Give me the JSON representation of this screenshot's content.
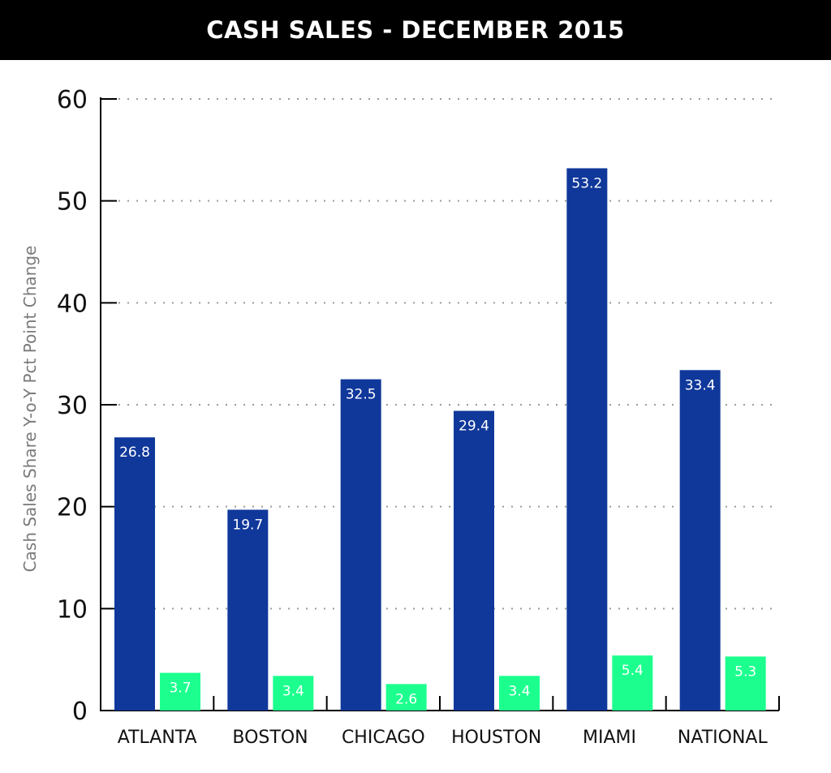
{
  "chart_data": {
    "type": "bar",
    "title": "CASH SALES - DECEMBER 2015",
    "ylabel": "Cash Sales Share Y-o-Y Pct Point Change",
    "xlabel": "",
    "categories": [
      "ATLANTA",
      "BOSTON",
      "CHICAGO",
      "HOUSTON",
      "MIAMI",
      "NATIONAL"
    ],
    "series": [
      {
        "values": [
          26.8,
          19.7,
          32.5,
          29.4,
          53.2,
          33.4
        ],
        "color": "#10389b"
      },
      {
        "values": [
          3.7,
          3.4,
          2.6,
          3.4,
          5.4,
          5.3
        ],
        "color": "#1cff8e"
      }
    ],
    "data_labels": [
      [
        "26.8",
        "19.7",
        "32.5",
        "29.4",
        "53.2",
        "33.4"
      ],
      [
        "3.7",
        "3.4",
        "2.6",
        "3.4",
        "5.4",
        "5.3"
      ]
    ],
    "ylim": [
      0,
      60
    ],
    "yticks": [
      0,
      10,
      20,
      30,
      40,
      50,
      60
    ],
    "grid": true,
    "legend": "none"
  }
}
